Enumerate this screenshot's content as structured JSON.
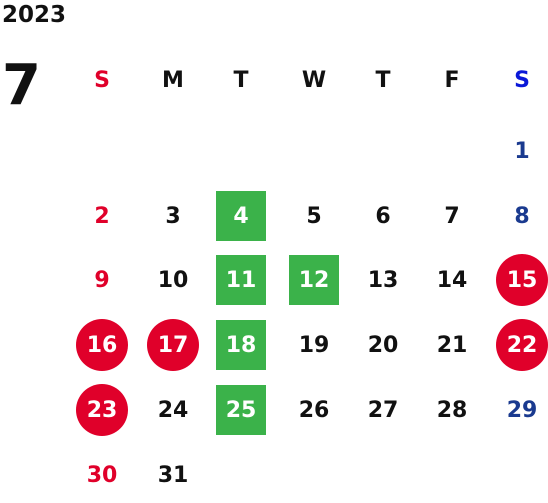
{
  "year": "2023",
  "month": "7",
  "colors": {
    "sunday": "#e0002a",
    "saturday_header": "#0a18d8",
    "saturday": "#1a3a8f",
    "weekday": "#111111",
    "highlight_green": "#3bb24a",
    "highlight_red": "#e0002a",
    "highlight_text": "#ffffff"
  },
  "weekdays": [
    "S",
    "M",
    "T",
    "W",
    "T",
    "F",
    "S"
  ],
  "weeks": [
    [
      null,
      null,
      null,
      null,
      null,
      null,
      "1"
    ],
    [
      "2",
      "3",
      "4",
      "5",
      "6",
      "7",
      "8"
    ],
    [
      "9",
      "10",
      "11",
      "12",
      "13",
      "14",
      "15"
    ],
    [
      "16",
      "17",
      "18",
      "19",
      "20",
      "21",
      "22"
    ],
    [
      "23",
      "24",
      "25",
      "26",
      "27",
      "28",
      "29"
    ],
    [
      "30",
      "31",
      null,
      null,
      null,
      null,
      null
    ]
  ],
  "highlights": {
    "green": [
      "4",
      "11",
      "12",
      "18",
      "25"
    ],
    "red": [
      "15",
      "16",
      "17",
      "22",
      "23"
    ]
  }
}
